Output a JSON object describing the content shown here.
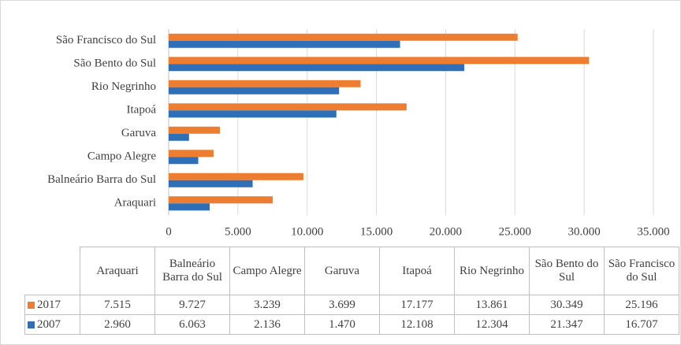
{
  "chart_data": {
    "type": "barh",
    "categories": [
      "Araquari",
      "Balneário Barra do Sul",
      "Campo Alegre",
      "Garuva",
      "Itapoá",
      "Rio Negrinho",
      "São Bento do Sul",
      "São Francisco do Sul"
    ],
    "series": [
      {
        "name": "2017",
        "color": "#ed7d31",
        "values": [
          7515,
          9727,
          3239,
          3699,
          17177,
          13861,
          30349,
          25196
        ],
        "value_labels": [
          "7.515",
          "9.727",
          "3.239",
          "3.699",
          "17.177",
          "13.861",
          "30.349",
          "25.196"
        ]
      },
      {
        "name": "2007",
        "color": "#2e6fb7",
        "values": [
          2960,
          6063,
          2136,
          1470,
          12108,
          12304,
          21347,
          16707
        ],
        "value_labels": [
          "2.960",
          "6.063",
          "2.136",
          "1.470",
          "12.108",
          "12.304",
          "21.347",
          "16.707"
        ]
      }
    ],
    "xlim": [
      0,
      35000
    ],
    "xticks": [
      0,
      {
        "value": 5000,
        "label": "5.000"
      },
      {
        "value": 10000,
        "label": "10.000"
      },
      {
        "value": 15000,
        "label": "15.000"
      },
      {
        "value": 20000,
        "label": "20.000"
      },
      {
        "value": 25000,
        "label": "25.000"
      },
      {
        "value": 30000,
        "label": "30.000"
      },
      {
        "value": 35000,
        "label": "35.000"
      }
    ],
    "grid": true
  }
}
